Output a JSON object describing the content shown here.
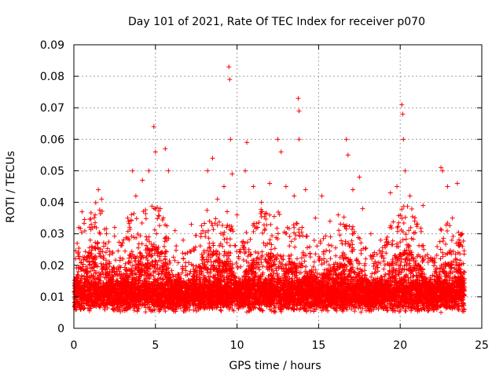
{
  "chart_data": {
    "type": "scatter",
    "title": "Day 101 of 2021, Rate Of TEC Index for receiver p070",
    "xlabel": "GPS time / hours",
    "ylabel": "ROTI / TECUs",
    "xlim": [
      0,
      25
    ],
    "ylim": [
      0,
      0.09
    ],
    "xticks": [
      0,
      5,
      10,
      15,
      20,
      25
    ],
    "xtick_labels": [
      "0",
      "5",
      "10",
      "15",
      "20",
      "25"
    ],
    "yticks": [
      0,
      0.01,
      0.02,
      0.03,
      0.04,
      0.05,
      0.06,
      0.07,
      0.08,
      0.09
    ],
    "ytick_labels": [
      "0",
      "0.01",
      "0.02",
      "0.03",
      "0.04",
      "0.05",
      "0.06",
      "0.07",
      "0.08",
      "0.09"
    ],
    "grid": true,
    "marker": "+",
    "color": "#ff0000",
    "series": [
      {
        "name": "ROTI",
        "points": [
          [
            0.1,
            0.012
          ],
          [
            0.2,
            0.027
          ],
          [
            0.3,
            0.032
          ],
          [
            0.5,
            0.037
          ],
          [
            0.8,
            0.018
          ],
          [
            1.0,
            0.028
          ],
          [
            1.3,
            0.036
          ],
          [
            1.5,
            0.044
          ],
          [
            1.7,
            0.041
          ],
          [
            2.0,
            0.03
          ],
          [
            2.5,
            0.032
          ],
          [
            3.0,
            0.022
          ],
          [
            3.3,
            0.035
          ],
          [
            3.6,
            0.05
          ],
          [
            3.8,
            0.042
          ],
          [
            4.2,
            0.047
          ],
          [
            4.6,
            0.05
          ],
          [
            4.9,
            0.064
          ],
          [
            5.0,
            0.056
          ],
          [
            5.3,
            0.038
          ],
          [
            5.6,
            0.057
          ],
          [
            5.8,
            0.05
          ],
          [
            6.2,
            0.031
          ],
          [
            6.7,
            0.028
          ],
          [
            7.2,
            0.033
          ],
          [
            7.8,
            0.03
          ],
          [
            8.2,
            0.05
          ],
          [
            8.5,
            0.054
          ],
          [
            8.8,
            0.041
          ],
          [
            9.2,
            0.045
          ],
          [
            9.5,
            0.083
          ],
          [
            9.55,
            0.079
          ],
          [
            9.6,
            0.06
          ],
          [
            9.7,
            0.049
          ],
          [
            10.0,
            0.036
          ],
          [
            10.5,
            0.05
          ],
          [
            10.6,
            0.059
          ],
          [
            11.0,
            0.045
          ],
          [
            11.5,
            0.04
          ],
          [
            12.0,
            0.046
          ],
          [
            12.5,
            0.06
          ],
          [
            12.7,
            0.056
          ],
          [
            13.0,
            0.045
          ],
          [
            13.5,
            0.042
          ],
          [
            13.75,
            0.073
          ],
          [
            13.8,
            0.069
          ],
          [
            13.8,
            0.06
          ],
          [
            14.2,
            0.044
          ],
          [
            14.8,
            0.035
          ],
          [
            15.2,
            0.042
          ],
          [
            15.7,
            0.034
          ],
          [
            16.2,
            0.036
          ],
          [
            16.7,
            0.06
          ],
          [
            16.8,
            0.055
          ],
          [
            17.1,
            0.044
          ],
          [
            17.5,
            0.048
          ],
          [
            17.7,
            0.038
          ],
          [
            18.2,
            0.03
          ],
          [
            18.8,
            0.028
          ],
          [
            19.4,
            0.043
          ],
          [
            19.8,
            0.045
          ],
          [
            20.1,
            0.071
          ],
          [
            20.15,
            0.068
          ],
          [
            20.2,
            0.06
          ],
          [
            20.3,
            0.05
          ],
          [
            20.6,
            0.042
          ],
          [
            21.0,
            0.033
          ],
          [
            21.4,
            0.039
          ],
          [
            22.0,
            0.022
          ],
          [
            22.5,
            0.051
          ],
          [
            22.6,
            0.05
          ],
          [
            22.9,
            0.045
          ],
          [
            23.2,
            0.035
          ],
          [
            23.5,
            0.046
          ],
          [
            23.8,
            0.03
          ],
          [
            23.9,
            0.018
          ]
        ]
      }
    ],
    "envelope": {
      "baseline_min": 0.005,
      "baseline_max": 0.012,
      "points_per_hour": 360,
      "activity": [
        [
          0,
          0.016
        ],
        [
          0.5,
          0.026
        ],
        [
          1.0,
          0.03
        ],
        [
          1.5,
          0.034
        ],
        [
          2.0,
          0.024
        ],
        [
          2.5,
          0.022
        ],
        [
          3.0,
          0.02
        ],
        [
          3.5,
          0.03
        ],
        [
          4.0,
          0.026
        ],
        [
          4.5,
          0.034
        ],
        [
          5.0,
          0.032
        ],
        [
          5.5,
          0.03
        ],
        [
          6.0,
          0.018
        ],
        [
          6.5,
          0.02
        ],
        [
          7.0,
          0.016
        ],
        [
          7.5,
          0.022
        ],
        [
          8.0,
          0.03
        ],
        [
          8.5,
          0.034
        ],
        [
          9.0,
          0.026
        ],
        [
          9.5,
          0.03
        ],
        [
          10.0,
          0.016
        ],
        [
          10.5,
          0.022
        ],
        [
          11.0,
          0.026
        ],
        [
          11.5,
          0.03
        ],
        [
          12.0,
          0.028
        ],
        [
          12.5,
          0.03
        ],
        [
          13.0,
          0.024
        ],
        [
          13.5,
          0.026
        ],
        [
          14.0,
          0.024
        ],
        [
          14.5,
          0.022
        ],
        [
          15.0,
          0.02
        ],
        [
          15.5,
          0.022
        ],
        [
          16.0,
          0.024
        ],
        [
          16.5,
          0.028
        ],
        [
          17.0,
          0.026
        ],
        [
          17.5,
          0.022
        ],
        [
          18.0,
          0.018
        ],
        [
          18.5,
          0.016
        ],
        [
          19.0,
          0.018
        ],
        [
          19.5,
          0.026
        ],
        [
          20.0,
          0.03
        ],
        [
          20.5,
          0.032
        ],
        [
          21.0,
          0.028
        ],
        [
          21.5,
          0.02
        ],
        [
          22.0,
          0.014
        ],
        [
          22.5,
          0.024
        ],
        [
          23.0,
          0.026
        ],
        [
          23.5,
          0.024
        ],
        [
          24.0,
          0.02
        ]
      ]
    }
  }
}
